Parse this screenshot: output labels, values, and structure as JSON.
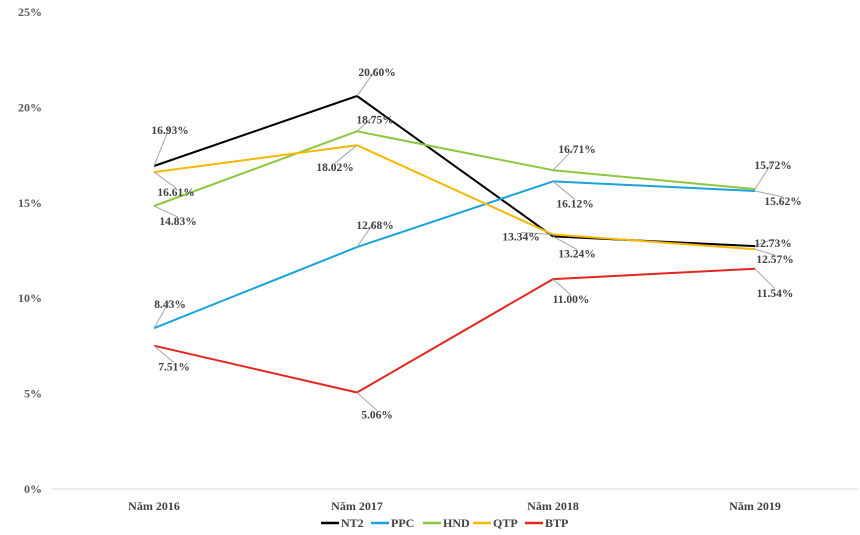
{
  "chart_data": {
    "type": "line",
    "title": "",
    "xlabel": "",
    "ylabel": "",
    "categories": [
      "Năm 2016",
      "Năm 2017",
      "Năm 2018",
      "Năm 2019"
    ],
    "ylim": [
      0,
      25
    ],
    "yticks": [
      "0%",
      "5%",
      "10%",
      "15%",
      "20%",
      "25%"
    ],
    "grid": false,
    "legend": "bottom",
    "series": [
      {
        "name": "NT2",
        "color": "#000000",
        "values": [
          16.93,
          20.6,
          13.24,
          12.73
        ],
        "labels": [
          "16.93%",
          "20.60%",
          "13.24%",
          "12.73%"
        ]
      },
      {
        "name": "PPC",
        "color": "#1aa3dc",
        "values": [
          8.43,
          12.68,
          16.12,
          15.62
        ],
        "labels": [
          "8.43%",
          "12.68%",
          "16.12%",
          "15.62%"
        ]
      },
      {
        "name": "HND",
        "color": "#8dc63f",
        "values": [
          14.83,
          18.75,
          16.71,
          15.72
        ],
        "labels": [
          "14.83%",
          "18.75%",
          "16.71%",
          "15.72%"
        ]
      },
      {
        "name": "QTP",
        "color": "#f5b800",
        "values": [
          16.61,
          18.02,
          13.34,
          12.57
        ],
        "labels": [
          "16.61%",
          "18.02%",
          "13.34%",
          "12.57%"
        ]
      },
      {
        "name": "BTP",
        "color": "#e3261f",
        "values": [
          7.51,
          5.06,
          11.0,
          11.54
        ],
        "labels": [
          "7.51%",
          "5.06%",
          "11.00%",
          "11.54%"
        ]
      }
    ]
  }
}
